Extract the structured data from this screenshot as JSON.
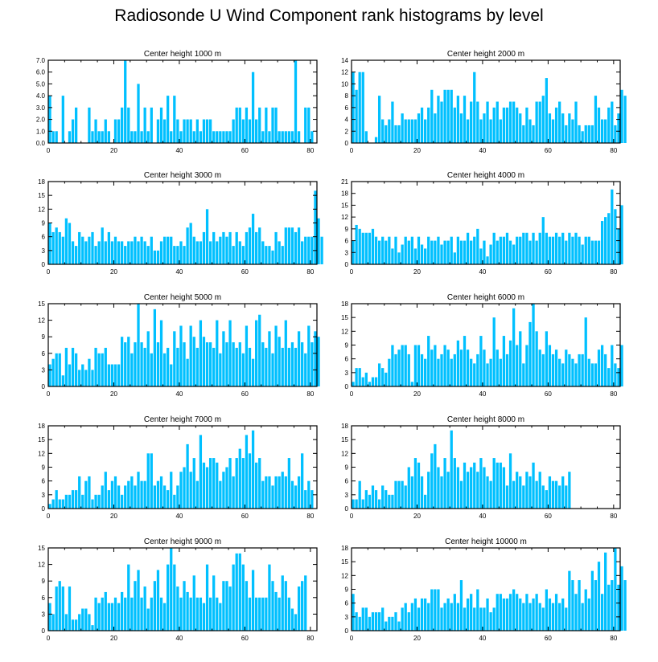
{
  "title": "Radiosonde U Wind Component rank histograms by level",
  "colors": {
    "bar": "#00C0FF",
    "bar_edge": "#ffffff",
    "axis": "#000000"
  },
  "chart_data": [
    {
      "type": "bar",
      "title": "Center height 1000 m",
      "xlim": [
        0,
        82
      ],
      "xticks": [
        0,
        20,
        40,
        60,
        80
      ],
      "ylim": [
        0,
        7
      ],
      "yticks": [
        0,
        1,
        2,
        3,
        4,
        5,
        6,
        7
      ],
      "ytick_labels": [
        "0.0",
        "1.0",
        "2.0",
        "3.0",
        "4.0",
        "5.0",
        "6.0",
        "7.0"
      ],
      "values": [
        4,
        1,
        1,
        0,
        4,
        0,
        1,
        2,
        3,
        0,
        0,
        0,
        3,
        1,
        2,
        1,
        1,
        2,
        1,
        0,
        2,
        2,
        3,
        7,
        3,
        1,
        1,
        5,
        1,
        3,
        1,
        3,
        0,
        2,
        3,
        2,
        4,
        1,
        4,
        2,
        1,
        2,
        2,
        2,
        1,
        2,
        1,
        2,
        2,
        2,
        1,
        1,
        1,
        1,
        1,
        1,
        2,
        3,
        3,
        2,
        3,
        2,
        6,
        2,
        3,
        1,
        3,
        1,
        3,
        3,
        1,
        1,
        1,
        1,
        1,
        7,
        1,
        0,
        3,
        3,
        1,
        0
      ]
    },
    {
      "type": "bar",
      "title": "Center height 2000 m",
      "xlim": [
        0,
        82
      ],
      "xticks": [
        0,
        20,
        40,
        60,
        80
      ],
      "ylim": [
        0,
        14
      ],
      "yticks": [
        0,
        2,
        4,
        6,
        8,
        10,
        12,
        14
      ],
      "ytick_labels": [
        "0",
        "2",
        "4",
        "6",
        "8",
        "10",
        "12",
        "14"
      ],
      "values": [
        12,
        9,
        12,
        12,
        2,
        0,
        0,
        1,
        8,
        4,
        3,
        4,
        7,
        3,
        3,
        5,
        4,
        4,
        4,
        4,
        5,
        6,
        4,
        6,
        9,
        5,
        8,
        7,
        9,
        9,
        9,
        6,
        8,
        5,
        8,
        4,
        7,
        12,
        7,
        4,
        5,
        7,
        4,
        6,
        7,
        4,
        6,
        6,
        7,
        7,
        6,
        5,
        3,
        6,
        4,
        3,
        7,
        7,
        8,
        11,
        5,
        4,
        6,
        7,
        5,
        3,
        5,
        4,
        7,
        3,
        2,
        3,
        3,
        3,
        8,
        6,
        4,
        4,
        6,
        7,
        3,
        5,
        9,
        8
      ]
    },
    {
      "type": "bar",
      "title": "Center height 3000 m",
      "xlim": [
        0,
        82
      ],
      "xticks": [
        0,
        20,
        40,
        60,
        80
      ],
      "ylim": [
        0,
        18
      ],
      "yticks": [
        0,
        3,
        6,
        9,
        12,
        15,
        18
      ],
      "ytick_labels": [
        "0",
        "3",
        "6",
        "9",
        "12",
        "15",
        "18"
      ],
      "values": [
        9,
        7,
        8,
        7,
        6,
        10,
        9,
        5,
        4,
        7,
        6,
        5,
        6,
        7,
        4,
        5,
        8,
        5,
        7,
        5,
        6,
        5,
        5,
        4,
        5,
        5,
        6,
        5,
        6,
        5,
        4,
        6,
        3,
        3,
        5,
        6,
        6,
        6,
        4,
        4,
        5,
        4,
        8,
        9,
        6,
        5,
        5,
        7,
        12,
        5,
        7,
        5,
        6,
        7,
        6,
        7,
        4,
        7,
        5,
        4,
        7,
        8,
        11,
        7,
        8,
        5,
        4,
        4,
        3,
        7,
        5,
        4,
        8,
        8,
        8,
        7,
        8,
        5,
        6,
        6,
        6,
        16,
        10,
        6
      ]
    },
    {
      "type": "bar",
      "title": "Center height 4000 m",
      "xlim": [
        0,
        82
      ],
      "xticks": [
        0,
        20,
        40,
        60,
        80
      ],
      "ylim": [
        0,
        21
      ],
      "yticks": [
        0,
        3,
        6,
        9,
        12,
        15,
        18,
        21
      ],
      "ytick_labels": [
        "0",
        "3",
        "6",
        "9",
        "12",
        "15",
        "18",
        "21"
      ],
      "values": [
        6,
        10,
        9,
        8,
        8,
        8,
        9,
        7,
        6,
        7,
        6,
        7,
        4,
        7,
        3,
        5,
        7,
        6,
        7,
        4,
        7,
        5,
        4,
        7,
        6,
        6,
        7,
        5,
        6,
        6,
        7,
        3,
        7,
        6,
        6,
        8,
        6,
        7,
        9,
        4,
        6,
        2,
        5,
        8,
        6,
        7,
        7,
        8,
        6,
        5,
        7,
        7,
        8,
        8,
        6,
        8,
        6,
        8,
        12,
        8,
        7,
        7,
        8,
        7,
        8,
        6,
        8,
        7,
        8,
        7,
        5,
        7,
        7,
        6,
        6,
        6,
        11,
        12,
        13,
        19,
        14,
        9,
        15
      ]
    },
    {
      "type": "bar",
      "title": "Center height 5000 m",
      "xlim": [
        0,
        82
      ],
      "xticks": [
        0,
        20,
        40,
        60,
        80
      ],
      "ylim": [
        0,
        15
      ],
      "yticks": [
        0,
        3,
        6,
        9,
        12,
        15
      ],
      "ytick_labels": [
        "0",
        "3",
        "6",
        "9",
        "12",
        "15"
      ],
      "values": [
        4,
        5,
        6,
        6,
        2,
        7,
        4,
        7,
        6,
        3,
        4,
        3,
        5,
        3,
        7,
        6,
        6,
        7,
        4,
        4,
        4,
        4,
        9,
        8,
        9,
        6,
        8,
        15,
        8,
        7,
        10,
        6,
        14,
        8,
        12,
        6,
        7,
        4,
        10,
        7,
        11,
        8,
        5,
        11,
        9,
        7,
        12,
        9,
        8,
        8,
        7,
        12,
        6,
        10,
        8,
        12,
        8,
        7,
        8,
        6,
        11,
        7,
        5,
        12,
        13,
        8,
        7,
        10,
        6,
        11,
        9,
        7,
        12,
        7,
        8,
        7,
        10,
        8,
        6,
        11,
        8,
        10,
        9
      ]
    },
    {
      "type": "bar",
      "title": "Center height 6000 m",
      "xlim": [
        0,
        82
      ],
      "xticks": [
        0,
        20,
        40,
        60,
        80
      ],
      "ylim": [
        0,
        18
      ],
      "yticks": [
        0,
        3,
        6,
        9,
        12,
        15,
        18
      ],
      "ytick_labels": [
        "0",
        "3",
        "6",
        "9",
        "12",
        "15",
        "18"
      ],
      "values": [
        1,
        4,
        4,
        2,
        3,
        1,
        2,
        2,
        5,
        4,
        3,
        6,
        9,
        7,
        8,
        9,
        9,
        7,
        1,
        9,
        9,
        7,
        6,
        11,
        8,
        9,
        6,
        7,
        9,
        8,
        6,
        7,
        10,
        8,
        11,
        8,
        6,
        5,
        7,
        11,
        8,
        5,
        6,
        15,
        8,
        6,
        11,
        7,
        10,
        17,
        9,
        12,
        5,
        9,
        14,
        18,
        12,
        8,
        7,
        12,
        9,
        7,
        8,
        6,
        5,
        8,
        7,
        6,
        5,
        7,
        7,
        15,
        6,
        5,
        5,
        8,
        9,
        7,
        4,
        9,
        5,
        4,
        9
      ]
    },
    {
      "type": "bar",
      "title": "Center height 7000 m",
      "xlim": [
        0,
        82
      ],
      "xticks": [
        0,
        20,
        40,
        60,
        80
      ],
      "ylim": [
        0,
        18
      ],
      "yticks": [
        0,
        3,
        6,
        9,
        12,
        15,
        18
      ],
      "ytick_labels": [
        "0",
        "3",
        "6",
        "9",
        "12",
        "15",
        "18"
      ],
      "values": [
        1,
        2,
        4,
        2,
        2,
        3,
        3,
        4,
        4,
        7,
        3,
        6,
        7,
        2,
        3,
        3,
        5,
        8,
        4,
        6,
        7,
        5,
        3,
        5,
        6,
        7,
        5,
        8,
        6,
        6,
        12,
        12,
        5,
        6,
        7,
        5,
        4,
        8,
        3,
        5,
        8,
        9,
        14,
        8,
        11,
        6,
        16,
        10,
        9,
        11,
        11,
        10,
        6,
        8,
        9,
        11,
        7,
        11,
        13,
        11,
        16,
        12,
        17,
        10,
        11,
        6,
        7,
        7,
        5,
        7,
        7,
        8,
        7,
        11,
        6,
        5,
        7,
        12,
        4,
        6,
        4
      ]
    },
    {
      "type": "bar",
      "title": "Center height 8000 m",
      "xlim": [
        0,
        82
      ],
      "xticks": [
        0,
        20,
        40,
        60,
        80
      ],
      "ylim": [
        0,
        18
      ],
      "yticks": [
        0,
        3,
        6,
        9,
        12,
        15,
        18
      ],
      "ytick_labels": [
        "0",
        "3",
        "6",
        "9",
        "12",
        "15",
        "18"
      ],
      "values": [
        2,
        2,
        6,
        2,
        4,
        3,
        5,
        4,
        2,
        5,
        4,
        3,
        3,
        6,
        6,
        6,
        5,
        9,
        7,
        11,
        10,
        7,
        3,
        8,
        12,
        14,
        9,
        7,
        11,
        8,
        17,
        11,
        9,
        6,
        10,
        8,
        9,
        10,
        8,
        11,
        9,
        7,
        6,
        11,
        10,
        10,
        9,
        5,
        12,
        6,
        8,
        7,
        5,
        8,
        7,
        10,
        6,
        8,
        5,
        4,
        7,
        6,
        6,
        5,
        7,
        5,
        8
      ]
    },
    {
      "type": "bar",
      "title": "Center height 9000 m",
      "xlim": [
        0,
        82
      ],
      "xticks": [
        0,
        20,
        40,
        60,
        80
      ],
      "ylim": [
        0,
        15
      ],
      "yticks": [
        0,
        3,
        6,
        9,
        12,
        15
      ],
      "ytick_labels": [
        "0",
        "3",
        "6",
        "9",
        "12",
        "15"
      ],
      "values": [
        5,
        3,
        8,
        9,
        8,
        3,
        8,
        2,
        2,
        3,
        4,
        4,
        3,
        1,
        6,
        5,
        6,
        7,
        5,
        5,
        6,
        5,
        7,
        6,
        12,
        6,
        9,
        11,
        6,
        8,
        4,
        6,
        9,
        11,
        6,
        5,
        12,
        15,
        12,
        8,
        6,
        9,
        7,
        6,
        10,
        6,
        6,
        5,
        12,
        6,
        10,
        6,
        5,
        9,
        9,
        8,
        12,
        14,
        14,
        12,
        9,
        6,
        11,
        6,
        6,
        6,
        6,
        12,
        9,
        7,
        6,
        10,
        9,
        6,
        4,
        3,
        8,
        9,
        10
      ]
    },
    {
      "type": "bar",
      "title": "Center height 10000 m",
      "xlim": [
        0,
        82
      ],
      "xticks": [
        0,
        20,
        40,
        60,
        80
      ],
      "ylim": [
        0,
        18
      ],
      "yticks": [
        0,
        3,
        6,
        9,
        12,
        15,
        18
      ],
      "ytick_labels": [
        "0",
        "3",
        "6",
        "9",
        "12",
        "15",
        "18"
      ],
      "values": [
        8,
        4,
        3,
        5,
        5,
        3,
        4,
        4,
        4,
        5,
        2,
        3,
        3,
        4,
        2,
        5,
        6,
        4,
        6,
        7,
        5,
        7,
        7,
        6,
        9,
        9,
        9,
        5,
        6,
        7,
        6,
        8,
        6,
        11,
        5,
        7,
        8,
        5,
        9,
        5,
        5,
        7,
        4,
        5,
        8,
        8,
        7,
        7,
        8,
        9,
        8,
        7,
        6,
        8,
        6,
        7,
        8,
        6,
        5,
        9,
        7,
        6,
        8,
        6,
        7,
        5,
        13,
        11,
        8,
        11,
        6,
        9,
        7,
        13,
        11,
        15,
        8,
        17,
        10,
        11,
        18,
        10,
        14,
        11
      ]
    }
  ]
}
